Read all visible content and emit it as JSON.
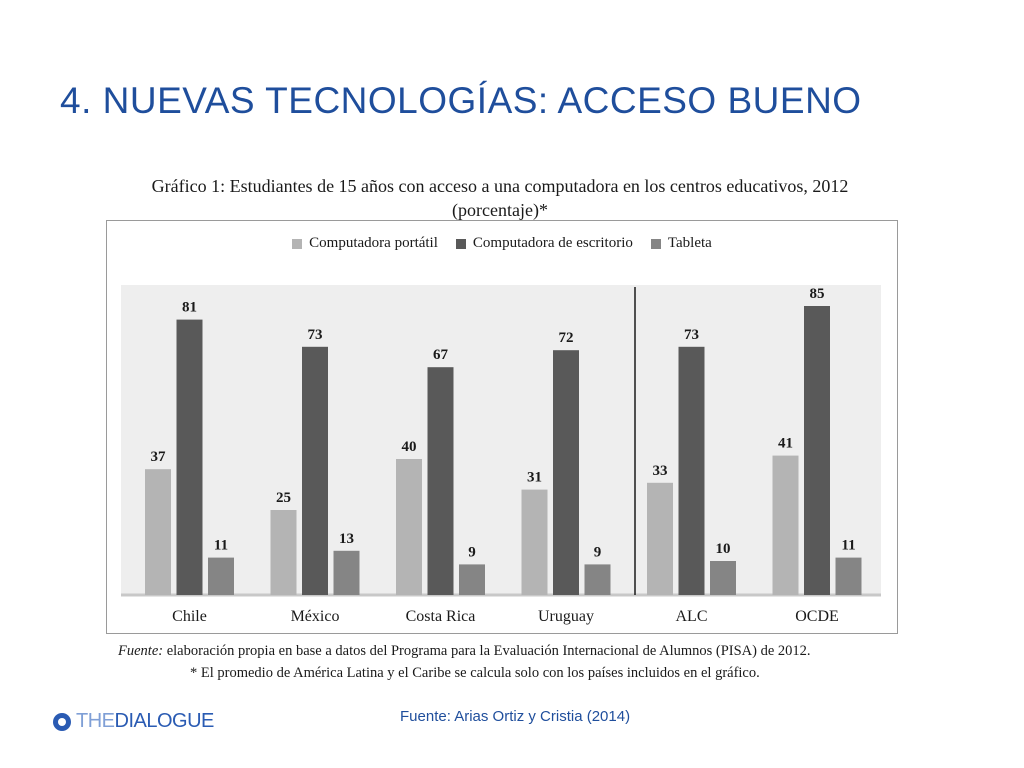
{
  "slide": {
    "title": "4. NUEVAS TECNOLOGÍAS: ACCESO BUENO",
    "source": "Fuente: Arias Ortiz y Cristia (2014)",
    "logo_left": "THE",
    "logo_right": "DIALOGUE"
  },
  "chart_data": {
    "type": "bar",
    "title_line1": "Gráfico 1: Estudiantes de 15 años con acceso a una computadora en los centros educativos, 2012",
    "title_line2": "(porcentaje)*",
    "categories": [
      "Chile",
      "México",
      "Costa Rica",
      "Uruguay",
      "ALC",
      "OCDE"
    ],
    "series": [
      {
        "name": "Computadora portátil",
        "color": "#b4b4b4",
        "values": [
          37,
          25,
          40,
          31,
          33,
          41
        ]
      },
      {
        "name": "Computadora de escritorio",
        "color": "#595959",
        "values": [
          81,
          73,
          67,
          72,
          73,
          85
        ]
      },
      {
        "name": "Tableta",
        "color": "#858585",
        "values": [
          11,
          13,
          9,
          9,
          10,
          11
        ]
      }
    ],
    "separator_after_category": "Uruguay",
    "legend_position": "top",
    "data_labels": true,
    "grid": false,
    "note_source_label": "Fuente:",
    "note_source_text": " elaboración propia en base a datos del Programa para la Evaluación Internacional de Alumnos (PISA) de 2012.",
    "note_footnote": "* El promedio de América Latina y el Caribe se calcula solo con los países incluidos en el gráfico."
  }
}
